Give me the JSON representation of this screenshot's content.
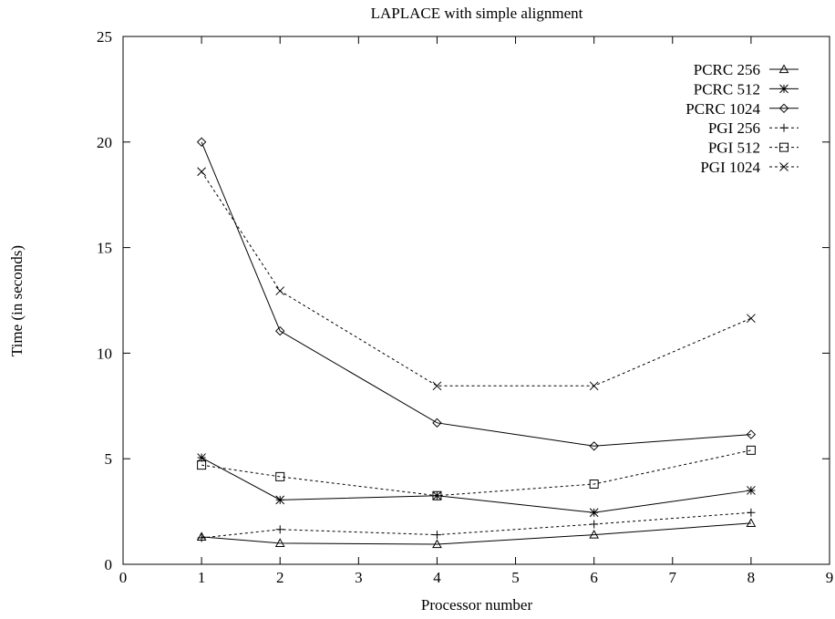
{
  "chart_data": {
    "type": "line",
    "title": "LAPLACE with simple alignment",
    "xlabel": "Processor number",
    "ylabel": "Time (in seconds)",
    "xlim": [
      0,
      9
    ],
    "ylim": [
      0,
      25
    ],
    "xticks": [
      0,
      1,
      2,
      3,
      4,
      5,
      6,
      7,
      8,
      9
    ],
    "yticks": [
      0,
      5,
      10,
      15,
      20,
      25
    ],
    "grid": false,
    "legend_position": "top-right",
    "x": [
      1,
      2,
      4,
      6,
      8
    ],
    "series": [
      {
        "name": "PCRC 256",
        "marker": "triangle",
        "dash": "solid",
        "values": [
          1.3,
          1.0,
          0.95,
          1.4,
          1.95
        ]
      },
      {
        "name": "PCRC 512",
        "marker": "star",
        "dash": "solid",
        "values": [
          5.05,
          3.05,
          3.25,
          2.45,
          3.5
        ]
      },
      {
        "name": "PCRC 1024",
        "marker": "diamond",
        "dash": "solid",
        "values": [
          20.0,
          11.05,
          6.7,
          5.6,
          6.15
        ]
      },
      {
        "name": "PGI 256",
        "marker": "plus",
        "dash": "dashed",
        "values": [
          1.25,
          1.65,
          1.4,
          1.9,
          2.45
        ]
      },
      {
        "name": "PGI 512",
        "marker": "square",
        "dash": "dashed",
        "values": [
          4.7,
          4.15,
          3.25,
          3.8,
          5.4
        ]
      },
      {
        "name": "PGI 1024",
        "marker": "cross",
        "dash": "dashed",
        "values": [
          18.6,
          12.95,
          8.45,
          8.45,
          11.65
        ]
      }
    ]
  }
}
